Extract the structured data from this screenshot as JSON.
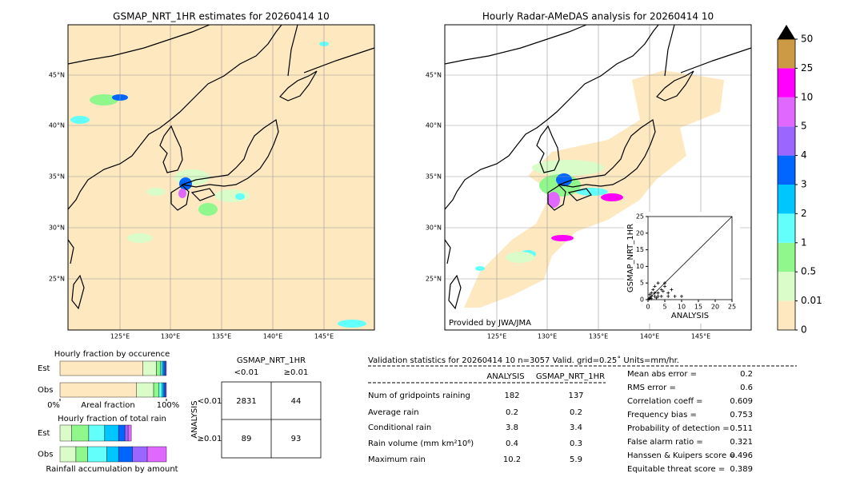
{
  "maps": [
    {
      "title": "GSMAP_NRT_1HR estimates for 20260414 10",
      "lat_labels": [
        "45°N",
        "40°N",
        "35°N",
        "30°N",
        "25°N"
      ],
      "lon_labels": [
        "125°E",
        "130°E",
        "135°E",
        "140°E",
        "145°E"
      ]
    },
    {
      "title": "Hourly Radar-AMeDAS analysis for 20260414 10",
      "lat_labels": [
        "45°N",
        "40°N",
        "35°N",
        "30°N",
        "25°N"
      ],
      "lon_labels": [
        "125°E",
        "130°E",
        "135°E",
        "140°E",
        "145°E"
      ],
      "credit": "Provided by JWA/JMA"
    }
  ],
  "colorbar": {
    "levels": [
      0,
      0.01,
      0.5,
      1,
      2,
      3,
      4,
      5,
      10,
      25,
      50
    ],
    "colors": [
      "#fde8c0",
      "#d9fcc8",
      "#90f78c",
      "#62fffb",
      "#00c6ff",
      "#0066ff",
      "#9a66ff",
      "#e068ff",
      "#ff00ff",
      "#cc9944"
    ],
    "extend_color": "#000000"
  },
  "chart_data": [
    {
      "type": "scatter",
      "xlabel": "ANALYSIS",
      "ylabel": "GSMAP_NRT_1HR",
      "x": [
        0.5,
        1,
        2,
        1.5,
        3,
        2,
        4,
        5,
        3,
        6,
        7,
        8,
        10,
        1,
        0.5,
        2.5,
        4,
        5,
        3,
        1,
        0.3,
        6,
        2,
        4.5
      ],
      "values": [
        0.5,
        2,
        1,
        3,
        2,
        4,
        3,
        4,
        5,
        2,
        3,
        1,
        1,
        0.3,
        1.5,
        0.5,
        1,
        5,
        1,
        1,
        0.2,
        1,
        2,
        2.5
      ],
      "color": "#000000",
      "xlim": [
        0,
        25
      ],
      "ylim": [
        0,
        25
      ],
      "xticks": [
        0,
        5,
        10,
        15,
        20,
        25
      ],
      "yticks": [
        0,
        5,
        10,
        15,
        20,
        25
      ]
    },
    {
      "type": "hbar",
      "title": "Hourly fraction by occurence",
      "xlabel": "Areal fraction",
      "categories": [
        "Est",
        "Obs"
      ],
      "xlim": [
        0,
        100
      ],
      "xticks": [
        {
          "value": 0,
          "label": "0%"
        },
        {
          "value": 100,
          "label": "100%"
        }
      ],
      "series": [
        {
          "color": "#fde8c0",
          "values": [
            78,
            72
          ]
        },
        {
          "color": "#d9fcc8",
          "values": [
            12.5,
            16
          ]
        },
        {
          "color": "#90f78c",
          "values": [
            4,
            5
          ]
        },
        {
          "color": "#62fffb",
          "values": [
            1.5,
            3
          ]
        },
        {
          "color": "#00c6ff",
          "values": [
            1.5,
            1.5
          ]
        },
        {
          "color": "#0066ff",
          "values": [
            1.5,
            1.5
          ]
        },
        {
          "color": "#9a66ff",
          "values": [
            1,
            1
          ]
        }
      ]
    },
    {
      "type": "hbar",
      "title": "Hourly fraction of total rain",
      "xlabel": "Rainfall accumulation by amount",
      "categories": [
        "Est",
        "Obs"
      ],
      "xlim": [
        0,
        100
      ],
      "series": [
        {
          "color": "#d9fcc8",
          "values": [
            11,
            15
          ]
        },
        {
          "color": "#90f78c",
          "values": [
            16,
            11
          ]
        },
        {
          "color": "#62fffb",
          "values": [
            15,
            18
          ]
        },
        {
          "color": "#00c6ff",
          "values": [
            13,
            11
          ]
        },
        {
          "color": "#0066ff",
          "values": [
            6,
            13
          ]
        },
        {
          "color": "#9a66ff",
          "values": [
            3,
            14
          ]
        },
        {
          "color": "#e068ff",
          "values": [
            3,
            18
          ]
        }
      ]
    }
  ],
  "contingency": {
    "title": "GSMAP_NRT_1HR",
    "col_labels": [
      "<0.01",
      "≥0.01"
    ],
    "row_title": "ANALYSIS",
    "row_labels": [
      "<0.01",
      "≥0.01"
    ],
    "cells": [
      [
        2831,
        44
      ],
      [
        89,
        93
      ]
    ]
  },
  "validation": {
    "header": "Validation statistics for 20260414 10  n=3057 Valid. grid=0.25˚ Units=mm/hr.",
    "columns": [
      "ANALYSIS",
      "GSMAP_NRT_1HR"
    ],
    "rows": [
      {
        "label": "Num of gridpoints raining",
        "values": [
          182,
          137
        ]
      },
      {
        "label": "Average rain",
        "values": [
          0.2,
          0.2
        ]
      },
      {
        "label": "Conditional rain",
        "values": [
          3.8,
          3.4
        ]
      },
      {
        "label": "Rain volume (mm km²10⁶)",
        "values": [
          0.4,
          0.3
        ]
      },
      {
        "label": "Maximum rain",
        "values": [
          10.2,
          5.9
        ]
      }
    ],
    "scores": [
      {
        "label": "Mean abs error =",
        "value": 0.2
      },
      {
        "label": "RMS error =",
        "value": 0.6
      },
      {
        "label": "Correlation coeff =",
        "value": 0.609
      },
      {
        "label": "Frequency bias =",
        "value": 0.753
      },
      {
        "label": "Probability of detection =",
        "value": 0.511
      },
      {
        "label": "False alarm ratio =",
        "value": 0.321
      },
      {
        "label": "Hanssen & Kuipers score =",
        "value": 0.496
      },
      {
        "label": "Equitable threat score =",
        "value": 0.389
      }
    ]
  }
}
